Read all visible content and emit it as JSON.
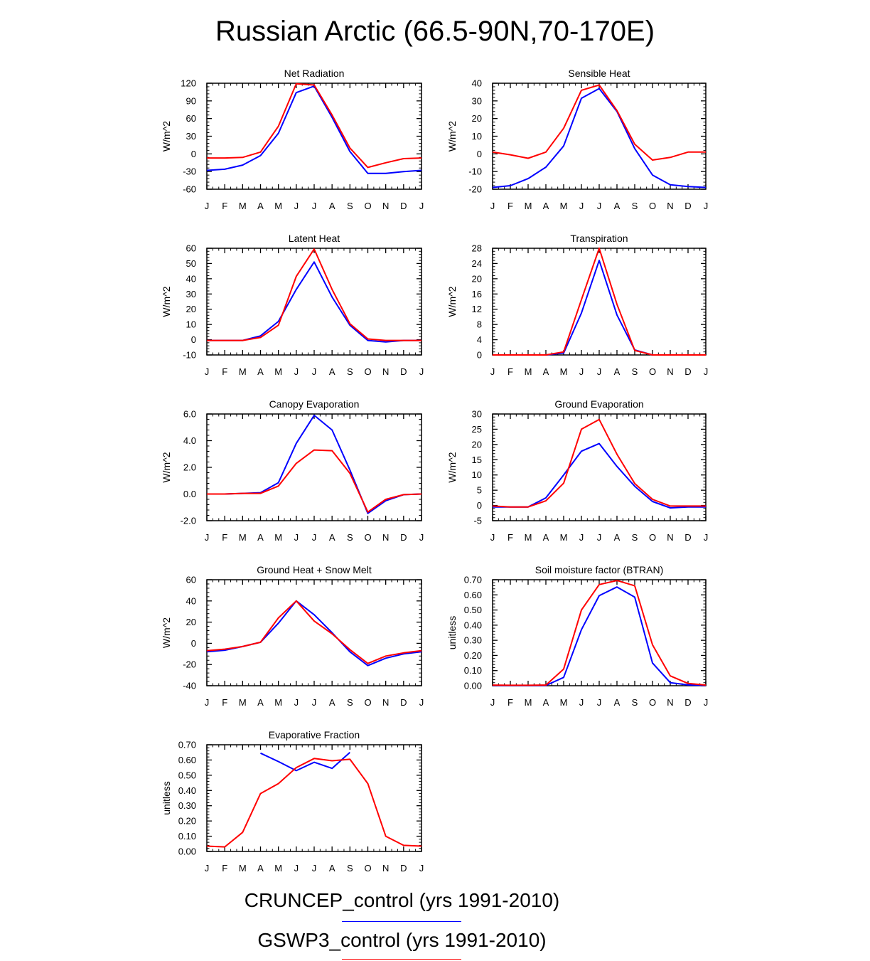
{
  "title": "Russian Arctic (66.5-90N,70-170E)",
  "legend": [
    {
      "label": "CRUNCEP_control (yrs 1991-2010)",
      "color": "#0000ff"
    },
    {
      "label": "GSWP3_control (yrs 1991-2010)",
      "color": "#ff0000"
    }
  ],
  "chart_data": [
    {
      "type": "line",
      "title": "Net Radiation",
      "ylabel": "W/m^2",
      "xlabel": "",
      "categories": [
        "J",
        "F",
        "M",
        "A",
        "M",
        "J",
        "J",
        "A",
        "S",
        "O",
        "N",
        "D",
        "J"
      ],
      "ylim": [
        -60,
        120
      ],
      "yticks": [
        "-60",
        "-30",
        "0",
        "30",
        "60",
        "90",
        "120"
      ],
      "series": [
        {
          "name": "CRUNCEP_control",
          "color": "#0000ff",
          "values": [
            -28,
            -26,
            -19,
            -3,
            35,
            104,
            115,
            62,
            4,
            -33,
            -33,
            -30,
            -28
          ]
        },
        {
          "name": "GSWP3_control",
          "color": "#ff0000",
          "values": [
            -7,
            -7,
            -6,
            3,
            47,
            119,
            117,
            66,
            10,
            -23,
            -15,
            -8,
            -7
          ]
        }
      ]
    },
    {
      "type": "line",
      "title": "Sensible Heat",
      "ylabel": "W/m^2",
      "xlabel": "",
      "categories": [
        "J",
        "F",
        "M",
        "A",
        "M",
        "J",
        "J",
        "A",
        "S",
        "O",
        "N",
        "D",
        "J"
      ],
      "ylim": [
        -20,
        40
      ],
      "yticks": [
        "-20",
        "-10",
        "0",
        "10",
        "20",
        "30",
        "40"
      ],
      "series": [
        {
          "name": "CRUNCEP_control",
          "color": "#0000ff",
          "values": [
            -19,
            -18,
            -14,
            -7.5,
            4.5,
            31.5,
            37,
            24,
            3,
            -12,
            -17.5,
            -18.5,
            -19
          ]
        },
        {
          "name": "GSWP3_control",
          "color": "#ff0000",
          "values": [
            1,
            -0.5,
            -2.5,
            1,
            14.5,
            36,
            39,
            24.5,
            5.5,
            -3.5,
            -2,
            1,
            1
          ]
        }
      ]
    },
    {
      "type": "line",
      "title": "Latent Heat",
      "ylabel": "W/m^2",
      "xlabel": "",
      "categories": [
        "J",
        "F",
        "M",
        "A",
        "M",
        "J",
        "J",
        "A",
        "S",
        "O",
        "N",
        "D",
        "J"
      ],
      "ylim": [
        -10,
        60
      ],
      "yticks": [
        "-10",
        "0",
        "10",
        "20",
        "30",
        "40",
        "50",
        "60"
      ],
      "series": [
        {
          "name": "CRUNCEP_control",
          "color": "#0000ff",
          "values": [
            -0.5,
            -0.5,
            -0.5,
            2.5,
            12,
            33,
            51,
            28,
            9.5,
            -0.5,
            -1.5,
            -0.5,
            -0.5
          ]
        },
        {
          "name": "GSWP3_control",
          "color": "#ff0000",
          "values": [
            -0.5,
            -0.5,
            -0.5,
            1.5,
            9.5,
            41.5,
            59.5,
            33,
            10.5,
            0.5,
            -0.5,
            -0.5,
            -0.5
          ]
        }
      ]
    },
    {
      "type": "line",
      "title": "Transpiration",
      "ylabel": "W/m^2",
      "xlabel": "",
      "categories": [
        "J",
        "F",
        "M",
        "A",
        "M",
        "J",
        "J",
        "A",
        "S",
        "O",
        "N",
        "D",
        "J"
      ],
      "ylim": [
        0,
        28
      ],
      "yticks": [
        "0",
        "4",
        "8",
        "12",
        "16",
        "20",
        "24",
        "28"
      ],
      "series": [
        {
          "name": "CRUNCEP_control",
          "color": "#0000ff",
          "values": [
            0,
            0,
            0,
            0,
            0.5,
            11,
            24.8,
            10.5,
            1.3,
            0,
            0,
            0,
            0
          ]
        },
        {
          "name": "GSWP3_control",
          "color": "#ff0000",
          "values": [
            0,
            0,
            0,
            0,
            0.8,
            14.5,
            28,
            13.3,
            1.2,
            0,
            0,
            0,
            0
          ]
        }
      ]
    },
    {
      "type": "line",
      "title": "Canopy Evaporation",
      "ylabel": "W/m^2",
      "xlabel": "",
      "categories": [
        "J",
        "F",
        "M",
        "A",
        "M",
        "J",
        "J",
        "A",
        "S",
        "O",
        "N",
        "D",
        "J"
      ],
      "ylim": [
        -2,
        6
      ],
      "yticks": [
        "-2.0",
        "0.0",
        "2.0",
        "4.0",
        "6.0"
      ],
      "series": [
        {
          "name": "CRUNCEP_control",
          "color": "#0000ff",
          "values": [
            0,
            0,
            0.05,
            0.1,
            0.85,
            3.8,
            5.9,
            4.8,
            1.8,
            -1.45,
            -0.5,
            -0.05,
            0
          ]
        },
        {
          "name": "GSWP3_control",
          "color": "#ff0000",
          "values": [
            0,
            0,
            0.05,
            0.05,
            0.6,
            2.3,
            3.3,
            3.25,
            1.55,
            -1.35,
            -0.4,
            -0.05,
            0
          ]
        }
      ]
    },
    {
      "type": "line",
      "title": "Ground Evaporation",
      "ylabel": "W/m^2",
      "xlabel": "",
      "categories": [
        "J",
        "F",
        "M",
        "A",
        "M",
        "J",
        "J",
        "A",
        "S",
        "O",
        "N",
        "D",
        "J"
      ],
      "ylim": [
        -5,
        30
      ],
      "yticks": [
        "-5",
        "0",
        "5",
        "10",
        "15",
        "20",
        "25",
        "30"
      ],
      "series": [
        {
          "name": "CRUNCEP_control",
          "color": "#0000ff",
          "values": [
            -0.5,
            -0.5,
            -0.5,
            2.5,
            10,
            17.8,
            20.3,
            12.8,
            6.3,
            1.3,
            -0.8,
            -0.5,
            -0.5
          ]
        },
        {
          "name": "GSWP3_control",
          "color": "#ff0000",
          "values": [
            -0.2,
            -0.5,
            -0.5,
            1.5,
            7.3,
            25,
            28.2,
            16.8,
            7.2,
            2,
            -0.2,
            -0.2,
            -0.2
          ]
        }
      ]
    },
    {
      "type": "line",
      "title": "Ground Heat + Snow Melt",
      "ylabel": "W/m^2",
      "xlabel": "",
      "categories": [
        "J",
        "F",
        "M",
        "A",
        "M",
        "J",
        "J",
        "A",
        "S",
        "O",
        "N",
        "D",
        "J"
      ],
      "ylim": [
        -40,
        60
      ],
      "yticks": [
        "-40",
        "-20",
        "0",
        "20",
        "40",
        "60"
      ],
      "series": [
        {
          "name": "CRUNCEP_control",
          "color": "#0000ff",
          "values": [
            -8,
            -6.5,
            -3,
            1,
            19,
            40,
            27,
            10,
            -8,
            -21,
            -14,
            -10,
            -8
          ]
        },
        {
          "name": "GSWP3_control",
          "color": "#ff0000",
          "values": [
            -7,
            -5.5,
            -3,
            1,
            24,
            40,
            21,
            9,
            -6,
            -19,
            -12,
            -9,
            -7
          ]
        }
      ]
    },
    {
      "type": "line",
      "title": "Soil moisture factor (BTRAN)",
      "ylabel": "unitless",
      "xlabel": "",
      "categories": [
        "J",
        "F",
        "M",
        "A",
        "M",
        "J",
        "J",
        "A",
        "S",
        "O",
        "N",
        "D",
        "J"
      ],
      "ylim": [
        0,
        0.7
      ],
      "yticks": [
        "0.00",
        "0.10",
        "0.20",
        "0.30",
        "0.40",
        "0.50",
        "0.60",
        "0.70"
      ],
      "series": [
        {
          "name": "CRUNCEP_control",
          "color": "#0000ff",
          "values": [
            0.002,
            0.001,
            0.001,
            0.002,
            0.055,
            0.37,
            0.595,
            0.652,
            0.585,
            0.15,
            0.02,
            0.005,
            0.002
          ]
        },
        {
          "name": "GSWP3_control",
          "color": "#ff0000",
          "values": [
            0.004,
            0.003,
            0.003,
            0.004,
            0.11,
            0.5,
            0.668,
            0.695,
            0.66,
            0.27,
            0.065,
            0.015,
            0.004
          ]
        }
      ]
    },
    {
      "type": "line",
      "title": "Evaporative Fraction",
      "ylabel": "unitless",
      "xlabel": "",
      "categories": [
        "J",
        "F",
        "M",
        "A",
        "M",
        "J",
        "J",
        "A",
        "S",
        "O",
        "N",
        "D",
        "J"
      ],
      "ylim": [
        0,
        0.7
      ],
      "yticks": [
        "0.00",
        "0.10",
        "0.20",
        "0.30",
        "0.40",
        "0.50",
        "0.60",
        "0.70"
      ],
      "series": [
        {
          "name": "CRUNCEP_control",
          "color": "#0000ff",
          "values": [
            null,
            null,
            null,
            0.645,
            0.59,
            0.53,
            0.585,
            0.545,
            0.65,
            null,
            null,
            null,
            null
          ]
        },
        {
          "name": "GSWP3_control",
          "color": "#ff0000",
          "values": [
            0.035,
            0.03,
            0.125,
            0.38,
            0.445,
            0.55,
            0.61,
            0.595,
            0.605,
            0.445,
            0.1,
            0.04,
            0.035
          ]
        }
      ]
    }
  ]
}
